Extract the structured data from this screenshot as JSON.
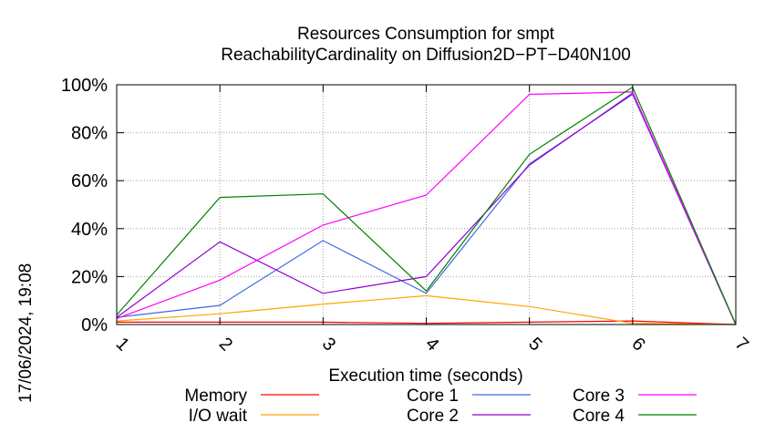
{
  "chart_data": {
    "type": "line",
    "title_line1": "Resources Consumption for smpt",
    "title_line2": "ReachabilityCardinality on Diffusion2D−PT−D40N100",
    "xlabel": "Execution time (seconds)",
    "ylabel": "",
    "timestamp": "17/06/2024, 19:08",
    "x": [
      1,
      2,
      3,
      4,
      5,
      6,
      7
    ],
    "xlim": [
      1,
      7
    ],
    "ylim": [
      0,
      100
    ],
    "x_ticks": [
      "1",
      "2",
      "3",
      "4",
      "5",
      "6",
      "7"
    ],
    "y_ticks": [
      "0%",
      "20%",
      "40%",
      "60%",
      "80%",
      "100%"
    ],
    "grid": true,
    "legend_position": "bottom",
    "series": [
      {
        "name": "Memory",
        "color": "#ff0000",
        "values": [
          1,
          1,
          1,
          0.5,
          1,
          1.5,
          0
        ]
      },
      {
        "name": "I/O wait",
        "color": "#ffa500",
        "values": [
          1.5,
          4.5,
          8.5,
          12,
          7.5,
          0.5,
          0
        ]
      },
      {
        "name": "Core 1",
        "color": "#4169e1",
        "values": [
          3,
          8,
          35,
          13,
          67,
          96,
          0
        ]
      },
      {
        "name": "Core 2",
        "color": "#9400d3",
        "values": [
          3,
          34.5,
          13,
          20,
          66.5,
          96.5,
          0
        ]
      },
      {
        "name": "Core 3",
        "color": "#ff00ff",
        "values": [
          2.5,
          18.5,
          41.5,
          54,
          96,
          97,
          0
        ]
      },
      {
        "name": "Core 4",
        "color": "#008000",
        "values": [
          4,
          53,
          54.5,
          14,
          71,
          99,
          0
        ]
      }
    ]
  }
}
